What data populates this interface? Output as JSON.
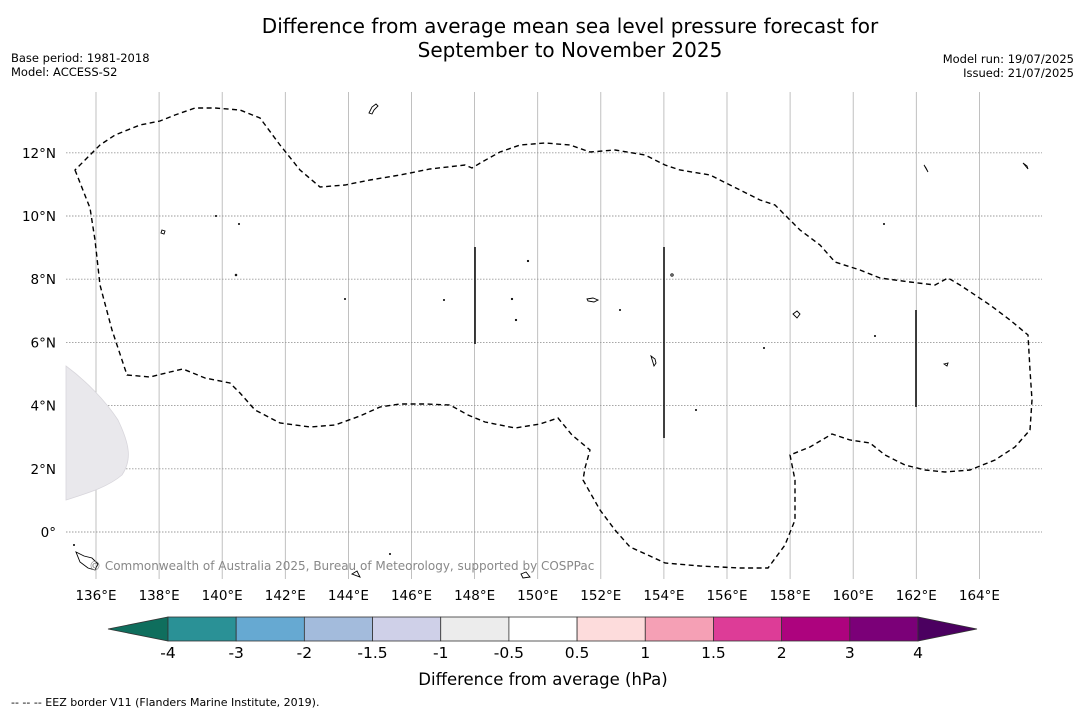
{
  "title_line1": "Difference from average mean sea level pressure forecast for",
  "title_line2": "September to November 2025",
  "meta_left": {
    "base_period": "Base period: 1981-2018",
    "model": "Model: ACCESS-S2"
  },
  "meta_right": {
    "model_run": "Model run: 19/07/2025",
    "issued": "Issued: 21/07/2025"
  },
  "copyright": "© Commonwealth of Australia 2025, Bureau of Meteorology, supported by COSPPac",
  "footnote": "--  --  -- EEZ border V11 (Flanders Marine Institute, 2019).",
  "map": {
    "lon_ticks": [
      "136°E",
      "138°E",
      "140°E",
      "142°E",
      "144°E",
      "146°E",
      "148°E",
      "150°E",
      "152°E",
      "154°E",
      "156°E",
      "158°E",
      "160°E",
      "162°E",
      "164°E"
    ],
    "lat_ticks": [
      "12°N",
      "10°N",
      "8°N",
      "6°N",
      "4°N",
      "2°N",
      "0°"
    ],
    "lon_range": [
      135,
      165.3
    ],
    "lat_range": [
      -1.5,
      14.2
    ]
  },
  "colorbar": {
    "label": "Difference from average (hPa)",
    "ticks": [
      "-4",
      "-3",
      "-2",
      "-1.5",
      "-1",
      "-0.5",
      "0.5",
      "1",
      "1.5",
      "2",
      "3",
      "4"
    ],
    "colors": [
      "#0f6e5d",
      "#2a9196",
      "#66a9d2",
      "#a3bbdc",
      "#cfd0e8",
      "#ececec",
      "#ffffff",
      "#fddcdc",
      "#f5a0b5",
      "#dd3c97",
      "#ad037e",
      "#7b0078",
      "#4b0060"
    ]
  }
}
